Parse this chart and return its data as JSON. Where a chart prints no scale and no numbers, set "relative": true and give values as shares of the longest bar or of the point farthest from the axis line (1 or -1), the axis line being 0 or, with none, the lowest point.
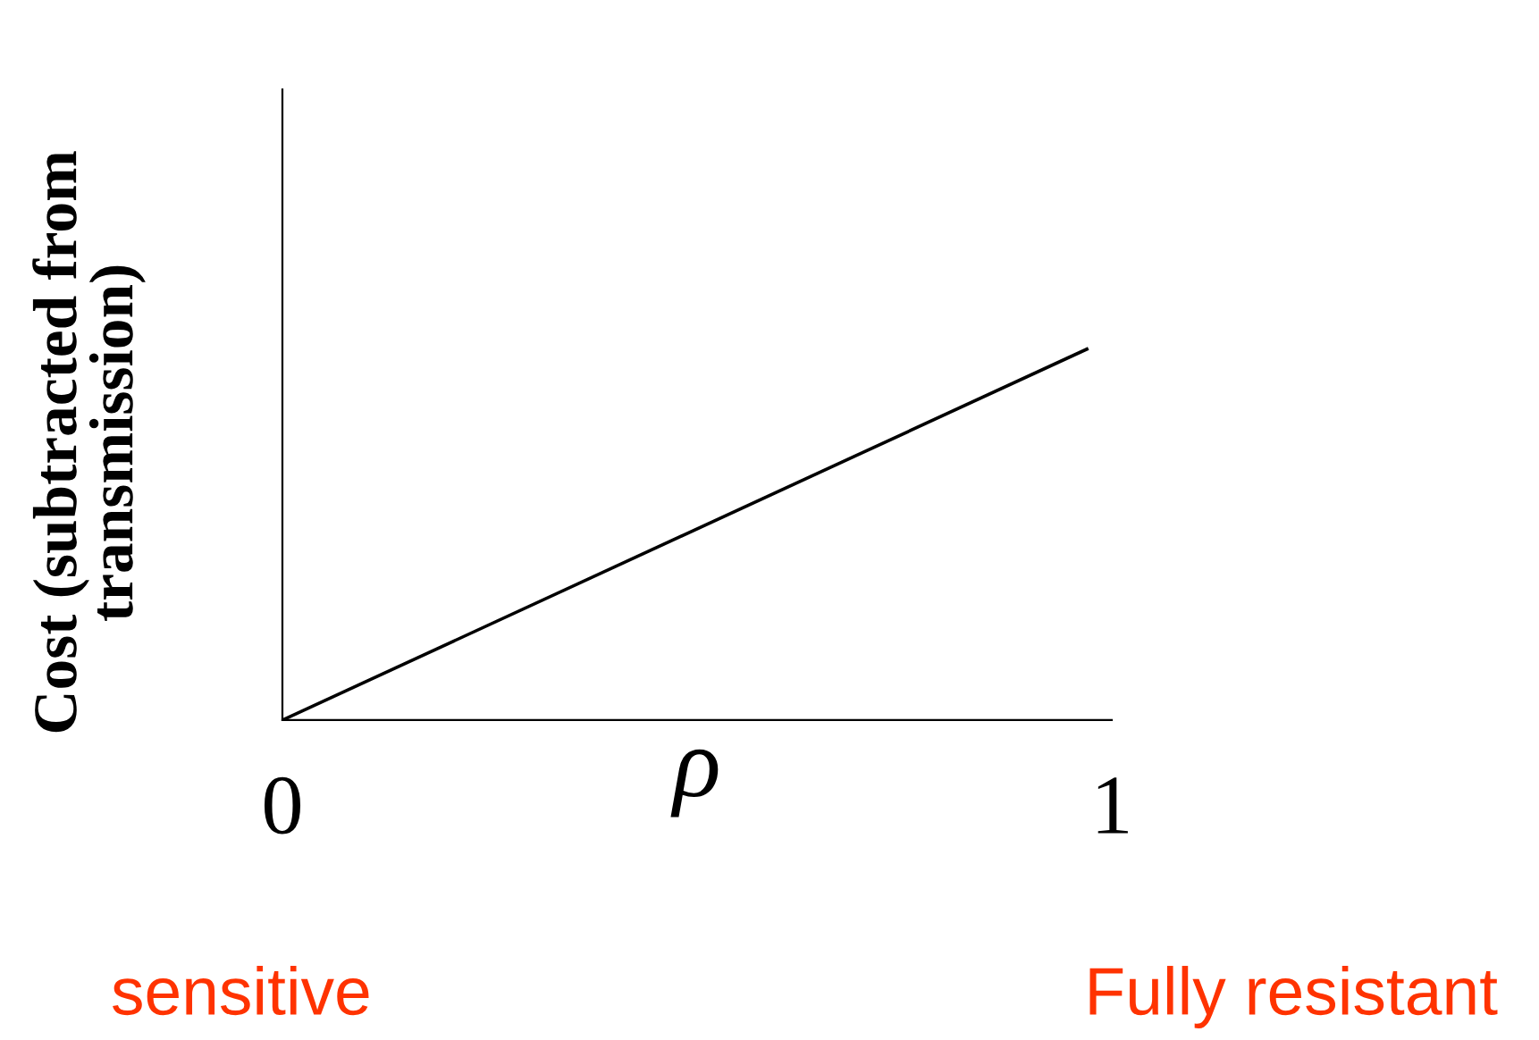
{
  "chart_data": {
    "type": "line",
    "ylabel": "Cost (subtracted from\ntransmission)",
    "xlabel": "ρ",
    "x": [
      0,
      0.97
    ],
    "values": [
      0,
      1
    ],
    "color": "#000000",
    "relative": true,
    "xlim": [
      0,
      1
    ],
    "xticks": [
      0,
      1
    ],
    "grid": false,
    "legend": false,
    "marker": "none",
    "line_style": "solid",
    "annotations": [
      "sensitive",
      "Fully resistant"
    ]
  }
}
